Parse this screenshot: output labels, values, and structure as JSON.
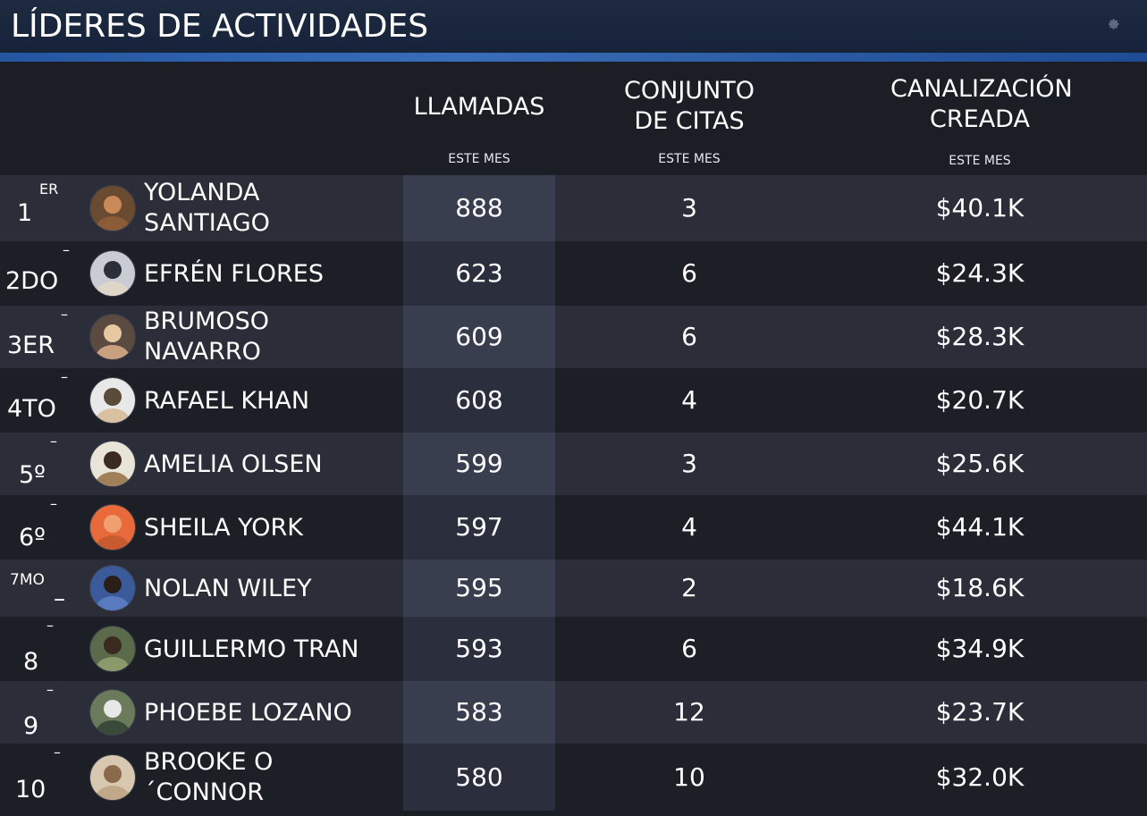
{
  "header": {
    "title": "LÍDERES DE ACTIVIDADES",
    "settings_icon": "gear-icon"
  },
  "columns": [
    {
      "label": "LLAMADAS",
      "sub": "ESTE MES"
    },
    {
      "label": "CONJUNTO DE CITAS",
      "sub": "ESTE MES"
    },
    {
      "label": "CANALIZACIÓN CREADA",
      "sub": "ESTE MES"
    }
  ],
  "rows": [
    {
      "rank": "1",
      "rank_sup": "ER",
      "name": "YOLANDA SANTIAGO",
      "calls": "888",
      "appointments": "3",
      "pipeline": "$40.1K",
      "avatar": "avatar-photo"
    },
    {
      "rank": "2DO",
      "rank_sup": "–",
      "name": "EFRÉN FLORES",
      "calls": "623",
      "appointments": "6",
      "pipeline": "$24.3K",
      "avatar": "avatar-photo"
    },
    {
      "rank": "3ER",
      "rank_sup": "–",
      "name": "BRUMOSO NAVARRO",
      "calls": "609",
      "appointments": "6",
      "pipeline": "$28.3K",
      "avatar": "avatar-photo"
    },
    {
      "rank": "4TO",
      "rank_sup": "–",
      "name": "RAFAEL KHAN",
      "calls": "608",
      "appointments": "4",
      "pipeline": "$20.7K",
      "avatar": "avatar-photo"
    },
    {
      "rank": "5º",
      "rank_sup": "–",
      "name": "AMELIA OLSEN",
      "calls": "599",
      "appointments": "3",
      "pipeline": "$25.6K",
      "avatar": "avatar-photo"
    },
    {
      "rank": "6º",
      "rank_sup": "–",
      "name": "SHEILA YORK",
      "calls": "597",
      "appointments": "4",
      "pipeline": "$44.1K",
      "avatar": "avatar-photo"
    },
    {
      "rank": "7MO",
      "rank_sup": "–",
      "name": "NOLAN WILEY",
      "calls": "595",
      "appointments": "2",
      "pipeline": "$18.6K",
      "avatar": "avatar-photo"
    },
    {
      "rank": "8",
      "rank_sup": "–",
      "name": "GUILLERMO TRAN",
      "calls": "593",
      "appointments": "6",
      "pipeline": "$34.9K",
      "avatar": "avatar-photo"
    },
    {
      "rank": "9",
      "rank_sup": "–",
      "name": "PHOEBE LOZANO",
      "calls": "583",
      "appointments": "12",
      "pipeline": "$23.7K",
      "avatar": "avatar-photo"
    },
    {
      "rank": "10",
      "rank_sup": "–",
      "name": "BROOKE O ´CONNOR",
      "calls": "580",
      "appointments": "10",
      "pipeline": "$32.0K",
      "avatar": "avatar-photo"
    }
  ],
  "colors": {
    "accent": "#2f62ad",
    "row_light": "#2b2e38",
    "row_dark": "#1c1f26",
    "calls_highlight": "#393e4f"
  }
}
